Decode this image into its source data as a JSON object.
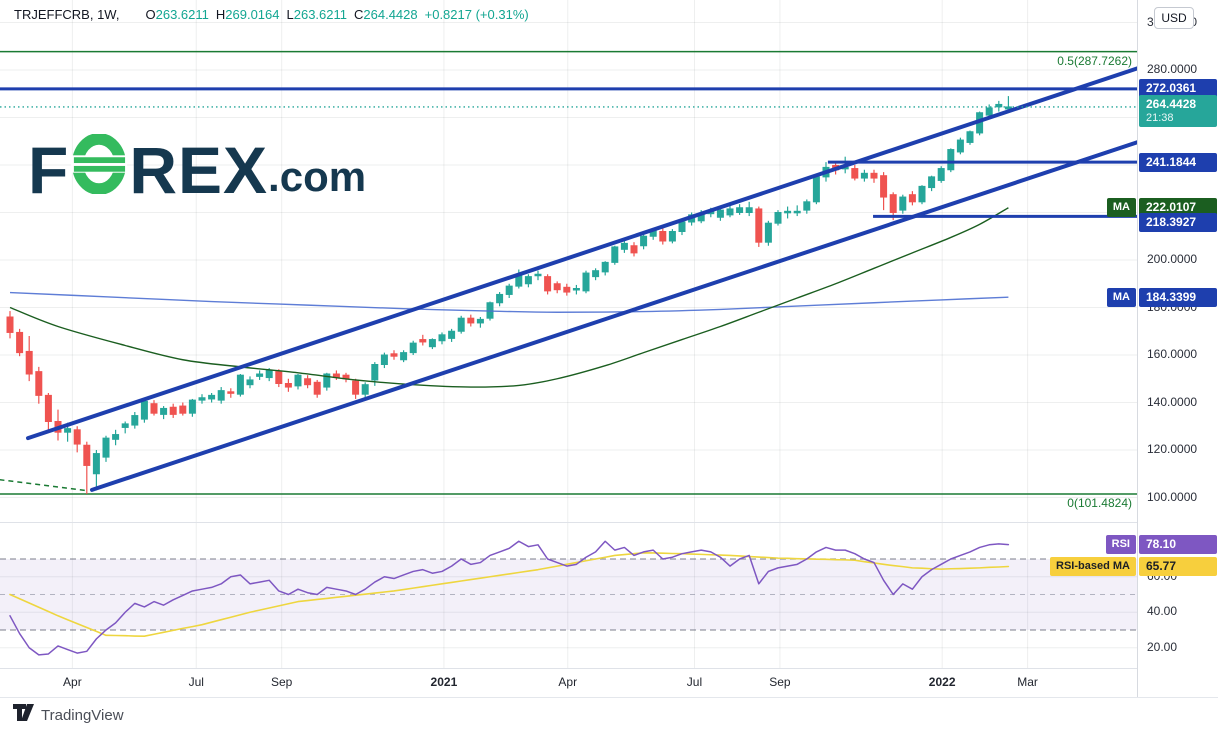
{
  "header": {
    "symbol": "TRJEFFCRB,",
    "interval": "1W,",
    "fields": [
      {
        "k": "O",
        "v": "263.6211"
      },
      {
        "k": "H",
        "v": "269.0164"
      },
      {
        "k": "L",
        "v": "263.6211"
      },
      {
        "k": "C",
        "v": "264.4428"
      }
    ],
    "change": "+0.8217 (+0.31%)"
  },
  "watermark": {
    "pre": "F",
    "o_icon": "euro-o",
    "post": "REX",
    "tld": ".com"
  },
  "axis_panel": {
    "currency": "USD",
    "price_ticks": [
      {
        "label": "300.0000",
        "price": 300
      },
      {
        "label": "280.0000",
        "price": 280
      },
      {
        "label": "200.0000",
        "price": 200
      },
      {
        "label": "180.0000",
        "price": 180
      },
      {
        "label": "160.0000",
        "price": 160
      },
      {
        "label": "140.0000",
        "price": 140
      },
      {
        "label": "120.0000",
        "price": 120
      },
      {
        "label": "100.0000",
        "price": 100
      }
    ],
    "rsi_ticks": [
      {
        "label": "60.00",
        "value": 60
      },
      {
        "label": "40.00",
        "value": 40
      },
      {
        "label": "20.00",
        "value": 20
      }
    ],
    "badges": [
      {
        "name": "level-272-badge",
        "text": "272.0361",
        "bg": "blue",
        "pane": "price",
        "at": 272.0361
      },
      {
        "name": "current-price-badge",
        "text": "264.4428",
        "sub": "21:38",
        "bg": "teal",
        "pane": "price",
        "at": 264.4428,
        "dy": 4,
        "two": true
      },
      {
        "name": "level-241-badge",
        "text": "241.1844",
        "bg": "blue",
        "pane": "price",
        "at": 241.1844
      },
      {
        "name": "ma-fast-badge",
        "text": "222.0107",
        "bg": "green",
        "pane": "price",
        "at": 222.0107
      },
      {
        "name": "level-218-badge",
        "text": "218.3927",
        "bg": "blue",
        "pane": "price",
        "at": 218.3927,
        "dy": 6
      },
      {
        "name": "ma-slow-badge",
        "text": "184.3399",
        "bg": "blue",
        "pane": "price",
        "at": 184.3399
      },
      {
        "name": "rsi-value-badge",
        "text": "78.10",
        "bg": "purple",
        "pane": "rsi",
        "at": 78.1
      },
      {
        "name": "rsi-ma-value-badge",
        "text": "65.77",
        "bg": "yellow",
        "pane": "rsi",
        "at": 65.77,
        "dark": true
      }
    ],
    "chips": [
      {
        "name": "ma-fast-chip",
        "text": "MA",
        "bg": "green",
        "pane": "price",
        "at": 222.0107
      },
      {
        "name": "ma-slow-chip",
        "text": "MA",
        "bg": "blue",
        "pane": "price",
        "at": 184.3399
      },
      {
        "name": "rsi-chip",
        "text": "RSI",
        "bg": "purple",
        "pane": "rsi",
        "at": 78.1
      },
      {
        "name": "rsi-ma-chip",
        "text": "RSI-based MA",
        "bg": "yellow",
        "pane": "rsi",
        "at": 65.77,
        "dark": true
      }
    ]
  },
  "x_axis": {
    "ticks": [
      {
        "label": "Apr",
        "w": 6.5,
        "bold": false
      },
      {
        "label": "Jul",
        "w": 19.4,
        "bold": false
      },
      {
        "label": "Sep",
        "w": 28.3,
        "bold": false
      },
      {
        "label": "2021",
        "w": 45.2,
        "bold": true
      },
      {
        "label": "Apr",
        "w": 58.1,
        "bold": false
      },
      {
        "label": "Jul",
        "w": 71.3,
        "bold": false
      },
      {
        "label": "Sep",
        "w": 80.2,
        "bold": false
      },
      {
        "label": "2022",
        "w": 97.1,
        "bold": true
      },
      {
        "label": "Mar",
        "w": 106.0,
        "bold": false
      }
    ]
  },
  "attribution": {
    "text": "TradingView"
  },
  "colors": {
    "up": "#26a69a",
    "down": "#ef5350",
    "blue": "#1e3fae",
    "teal": "#26a69a",
    "green": "#1b5e20",
    "purple": "#7e57c2",
    "yellow": "#f7cf3d",
    "fib_green": "#1a7a33",
    "ma_fast_line": "#1b5e20",
    "ma_slow_line": "#4d6fd1",
    "rsi_line": "#7e57c2",
    "rsi_ma_line": "#eed63f",
    "grid": "rgba(42,46,57,0.08)",
    "separator": "#dfe2e8",
    "band_fill": "rgba(126,87,194,0.09)",
    "dash_dark": "rgba(80,85,100,0.6)",
    "dash_light": "rgba(150,153,170,0.7)"
  },
  "chart_data": {
    "type": "candlestick",
    "symbol": "TRJEFFCRB",
    "interval": "1W",
    "current": {
      "price": 264.4428,
      "countdown": "21:38"
    },
    "last_ohlc": {
      "open": 263.6211,
      "high": 269.0164,
      "low": 263.6211,
      "close": 264.4428,
      "change": 0.8217,
      "change_pct": 0.31
    },
    "price_axis": {
      "ticks": [
        300,
        280,
        260,
        240,
        220,
        200,
        180,
        160,
        140,
        120,
        100
      ],
      "currency": "USD"
    },
    "candles": [
      [
        176,
        178.5,
        167,
        169.5
      ],
      [
        169.5,
        171,
        159.5,
        161
      ],
      [
        161.5,
        168,
        149,
        152
      ],
      [
        153,
        155,
        139.5,
        143
      ],
      [
        143,
        144,
        128.5,
        132
      ],
      [
        132,
        137,
        124,
        127.5
      ],
      [
        127.5,
        131.5,
        123.5,
        129
      ],
      [
        128.5,
        130,
        119,
        122.5
      ],
      [
        122,
        123.5,
        101.5,
        113.5
      ],
      [
        110,
        120,
        103,
        118.5
      ],
      [
        117,
        126,
        115,
        125
      ],
      [
        124.5,
        128.5,
        122,
        126.5
      ],
      [
        129.5,
        132,
        127,
        131
      ],
      [
        130.5,
        136,
        129,
        134.5
      ],
      [
        133,
        141.5,
        131.5,
        140.5
      ],
      [
        139.5,
        141,
        134.5,
        135.5
      ],
      [
        135,
        138.5,
        133,
        137.5
      ],
      [
        138,
        139.5,
        133.5,
        135
      ],
      [
        138.5,
        140,
        134.5,
        135.5
      ],
      [
        135.5,
        141.5,
        134,
        141
      ],
      [
        141,
        143.5,
        139.5,
        142
      ],
      [
        141.5,
        144,
        140,
        143
      ],
      [
        141,
        146.5,
        139.5,
        145
      ],
      [
        144.5,
        146,
        142,
        144
      ],
      [
        143.5,
        152,
        142.5,
        151.5
      ],
      [
        147.5,
        151,
        146,
        149.5
      ],
      [
        151,
        153.5,
        149.5,
        152
      ],
      [
        150.5,
        154.5,
        149,
        153.5
      ],
      [
        153,
        154,
        146.5,
        148
      ],
      [
        148,
        150,
        144.5,
        146.5
      ],
      [
        147,
        152,
        145.5,
        151.5
      ],
      [
        150,
        151.5,
        146,
        147.5
      ],
      [
        148.5,
        149.5,
        142,
        143.5
      ],
      [
        146.5,
        152.5,
        145,
        152
      ],
      [
        152,
        153.5,
        149.5,
        150.5
      ],
      [
        151.5,
        152.5,
        148.5,
        150
      ],
      [
        149,
        150,
        141.5,
        143.5
      ],
      [
        143.5,
        148.5,
        142,
        147.5
      ],
      [
        149.5,
        157,
        147,
        156
      ],
      [
        156,
        161,
        154.5,
        160
      ],
      [
        160.5,
        162,
        158,
        159.5
      ],
      [
        158,
        162,
        157,
        161
      ],
      [
        161,
        166,
        160,
        165
      ],
      [
        166.5,
        168.5,
        164,
        165.5
      ],
      [
        163.5,
        167,
        162.5,
        166.5
      ],
      [
        166,
        169.5,
        164.5,
        168.5
      ],
      [
        167,
        171,
        165.5,
        170
      ],
      [
        170,
        176.5,
        169,
        175.5
      ],
      [
        175.5,
        177,
        172,
        173.5
      ],
      [
        173.5,
        176,
        171.5,
        175
      ],
      [
        175.5,
        182.5,
        174.5,
        182
      ],
      [
        182,
        186.5,
        180.5,
        185.5
      ],
      [
        185.5,
        190,
        184,
        189
      ],
      [
        189,
        196,
        188,
        193.5
      ],
      [
        190,
        194,
        188.5,
        193
      ],
      [
        193.5,
        195.5,
        191.5,
        194
      ],
      [
        193,
        194,
        185.5,
        187
      ],
      [
        190,
        191,
        186,
        187.5
      ],
      [
        188.5,
        190,
        185,
        186.5
      ],
      [
        187.5,
        189.5,
        185.5,
        188
      ],
      [
        187,
        195.5,
        186,
        194.5
      ],
      [
        193,
        196.5,
        191.5,
        195.5
      ],
      [
        195,
        199.5,
        193.5,
        199
      ],
      [
        199,
        206,
        198,
        205.5
      ],
      [
        204.5,
        208,
        203,
        207
      ],
      [
        206,
        207.5,
        201.5,
        203
      ],
      [
        206,
        211,
        204.5,
        210
      ],
      [
        210,
        213.5,
        208.5,
        212.5
      ],
      [
        212,
        213.5,
        206.5,
        208
      ],
      [
        208,
        213,
        207,
        212
      ],
      [
        212,
        217,
        210.5,
        216
      ],
      [
        216,
        220,
        214.5,
        219
      ],
      [
        216.5,
        221,
        215.5,
        219.5
      ],
      [
        219.5,
        222,
        218,
        220.5
      ],
      [
        218,
        222,
        216.5,
        221
      ],
      [
        219,
        223,
        218,
        221.5
      ],
      [
        220,
        223.5,
        219,
        222
      ],
      [
        220,
        224.5,
        218.5,
        222
      ],
      [
        221.5,
        222.5,
        205.5,
        207.5
      ],
      [
        207.5,
        216.5,
        206,
        215.5
      ],
      [
        215.5,
        221,
        214.5,
        220
      ],
      [
        220,
        222.5,
        217.5,
        220.5
      ],
      [
        220.5,
        223,
        218.5,
        220.5
      ],
      [
        221,
        225.5,
        219.5,
        224.5
      ],
      [
        224.5,
        236,
        223.5,
        235
      ],
      [
        235,
        241.2,
        233,
        239
      ],
      [
        239.8,
        241,
        236,
        238
      ],
      [
        238.5,
        243.5,
        236.5,
        239
      ],
      [
        238.5,
        240,
        233.5,
        234.5
      ],
      [
        234.5,
        238,
        233,
        236.5
      ],
      [
        236.5,
        238,
        232.5,
        234.5
      ],
      [
        235.5,
        237,
        221,
        226.5
      ],
      [
        227.5,
        228.5,
        216.8,
        220
      ],
      [
        221,
        227.5,
        219.5,
        226.5
      ],
      [
        227.5,
        229,
        223,
        224.5
      ],
      [
        224.5,
        231.5,
        223.5,
        231
      ],
      [
        230.5,
        235.5,
        229,
        235
      ],
      [
        233.5,
        239.5,
        232.5,
        238.5
      ],
      [
        238,
        247,
        237,
        246.5
      ],
      [
        245.5,
        251.5,
        244.5,
        250.5
      ],
      [
        249.5,
        254.5,
        248.5,
        254
      ],
      [
        253.5,
        262.5,
        252.5,
        262
      ],
      [
        261,
        265.5,
        259.5,
        264
      ],
      [
        264.5,
        267,
        262.5,
        265.5
      ],
      [
        263.6211,
        269.0164,
        263.6211,
        264.4428
      ]
    ],
    "ma_fast": {
      "label": "MA",
      "value": 222.0107,
      "points": [
        [
          0,
          180
        ],
        [
          5,
          172
        ],
        [
          12,
          164
        ],
        [
          18,
          158
        ],
        [
          24,
          155
        ],
        [
          30,
          152.5
        ],
        [
          36,
          149.5
        ],
        [
          42,
          147.5
        ],
        [
          48,
          146.5
        ],
        [
          53,
          147.2
        ],
        [
          57,
          150
        ],
        [
          62,
          155.5
        ],
        [
          66,
          161
        ],
        [
          70,
          166.5
        ],
        [
          74,
          172
        ],
        [
          78,
          178
        ],
        [
          82,
          184
        ],
        [
          86,
          190
        ],
        [
          90,
          196.5
        ],
        [
          94,
          203
        ],
        [
          98,
          209.5
        ],
        [
          101,
          215
        ],
        [
          104,
          222.01
        ]
      ]
    },
    "ma_slow": {
      "label": "MA",
      "value": 184.3399,
      "points": [
        [
          0,
          186.3
        ],
        [
          10,
          184.5
        ],
        [
          21,
          182.5
        ],
        [
          31,
          181
        ],
        [
          41,
          179.5
        ],
        [
          51,
          178.4
        ],
        [
          57,
          178
        ],
        [
          66,
          178.3
        ],
        [
          74,
          179.2
        ],
        [
          82,
          180.6
        ],
        [
          90,
          182
        ],
        [
          97,
          183.2
        ],
        [
          104,
          184.34
        ]
      ]
    },
    "levels": [
      {
        "price": 272.0361,
        "from_w": -1.1
      },
      {
        "price": 241.1844,
        "from_w": 85.2
      },
      {
        "price": 218.3927,
        "from_w": 89.9
      }
    ],
    "fib": {
      "levels": [
        {
          "label": "0.5(287.7262)",
          "price": 287.7262
        },
        {
          "label": "0(101.4824)",
          "price": 101.4824
        }
      ],
      "dashed_tail": [
        [
          -1.1,
          107.5
        ],
        [
          8.2,
          102.8
        ]
      ]
    },
    "channel": {
      "upper": [
        [
          1.875,
          125.0
        ],
        [
          117.5,
          280.8
        ]
      ],
      "lower": [
        [
          8.54,
          103.2
        ],
        [
          117.5,
          249.7
        ]
      ]
    },
    "rsi": {
      "last": 78.1,
      "ma_last": 65.77,
      "overbought": 70,
      "mid": 50,
      "oversold": 30,
      "ticks": [
        60,
        40,
        20
      ],
      "values": [
        38,
        28,
        20,
        16,
        16.5,
        21,
        19,
        17,
        18,
        25,
        30,
        34,
        40,
        45,
        43,
        46,
        44,
        47,
        49.5,
        52,
        53,
        54,
        56,
        60,
        61,
        56,
        57,
        58,
        52,
        50,
        53,
        51,
        50,
        54,
        53,
        52,
        50,
        53,
        57,
        60,
        59,
        61,
        63,
        64,
        62,
        63,
        66,
        70,
        67,
        68,
        72,
        74,
        76,
        80,
        77,
        78,
        70,
        68,
        66,
        67,
        71,
        74,
        80,
        75,
        76.5,
        72,
        74,
        75,
        70,
        71,
        73,
        74,
        75,
        74,
        71,
        66,
        70,
        72,
        56,
        63,
        65,
        66,
        67,
        70,
        74,
        76.5,
        75,
        75,
        73,
        70,
        68,
        58,
        50,
        56,
        53,
        60,
        64,
        67,
        70,
        72,
        74,
        76.5,
        78,
        78.5,
        78.1
      ],
      "ma_values": [
        50,
        47.6,
        45.2,
        42.8,
        40.4,
        38,
        35.8,
        33.6,
        31.4,
        29.2,
        27,
        26.9,
        26.8,
        26.6,
        26.5,
        27.6,
        28.7,
        29.8,
        30.9,
        31.9,
        33,
        34.4,
        35.8,
        37.2,
        38.6,
        40,
        41.2,
        42.4,
        43.6,
        44.8,
        46,
        46.6,
        47.2,
        47.8,
        48.4,
        49,
        49.6,
        50.2,
        50.8,
        51.4,
        52,
        52.8,
        53.6,
        54.4,
        55.2,
        56,
        56.8,
        57.6,
        58.4,
        59.2,
        60,
        60.8,
        61.6,
        62.4,
        63.2,
        64,
        65,
        66,
        67,
        68,
        69,
        70,
        71,
        72,
        72.5,
        73,
        73.5,
        73.4,
        73.3,
        73.1,
        73,
        72.8,
        72.6,
        72.4,
        72.2,
        72,
        71.7,
        71.4,
        71.1,
        70.8,
        70.5,
        70.4,
        70.2,
        70.1,
        69.9,
        69.8,
        69.6,
        69.5,
        69.3,
        68.5,
        67.8,
        67,
        66.3,
        65.7,
        65,
        64.8,
        64.5,
        64.3,
        64.5,
        64.6,
        64.8,
        65,
        65.3,
        65.5,
        65.77
      ]
    },
    "x_ticks": [
      {
        "label": "Apr",
        "w": 6.5
      },
      {
        "label": "Jul",
        "w": 19.4
      },
      {
        "label": "Sep",
        "w": 28.3
      },
      {
        "label": "2021",
        "w": 45.2
      },
      {
        "label": "Apr",
        "w": 58.1
      },
      {
        "label": "Jul",
        "w": 71.3
      },
      {
        "label": "Sep",
        "w": 80.2
      },
      {
        "label": "2022",
        "w": 97.1
      },
      {
        "label": "Mar",
        "w": 106.0
      }
    ]
  }
}
